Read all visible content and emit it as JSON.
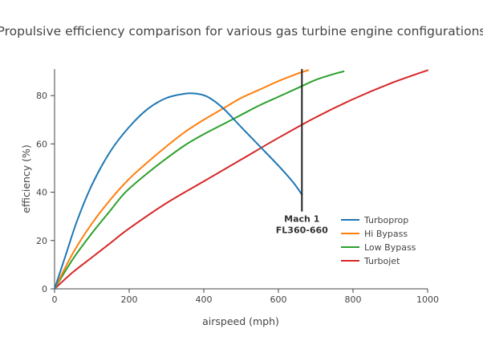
{
  "chart_data": {
    "type": "line",
    "title": "Propulsive efficiency comparison for various gas turbine engine configurations",
    "xlabel": "airspeed (mph)",
    "ylabel": "efficiency (%)",
    "xlim": [
      0,
      1000
    ],
    "ylim": [
      0,
      91
    ],
    "x_ticks": [
      0,
      200,
      400,
      600,
      800,
      1000
    ],
    "y_ticks": [
      0,
      20,
      40,
      60,
      80
    ],
    "grid": false,
    "legend_position": "bottom-right",
    "series": [
      {
        "name": "Turboprop",
        "color": "#1f77b4",
        "x": [
          0,
          30,
          60,
          100,
          150,
          200,
          250,
          300,
          350,
          380,
          410,
          450,
          500,
          550,
          600,
          640,
          663
        ],
        "y": [
          0,
          14,
          28,
          43,
          57,
          67,
          74.5,
          79,
          80.8,
          80.8,
          79.5,
          75,
          67,
          59,
          51,
          44,
          39
        ]
      },
      {
        "name": "Hi Bypass",
        "color": "#ff7f0e",
        "x": [
          0,
          50,
          100,
          150,
          200,
          250,
          300,
          350,
          400,
          450,
          500,
          550,
          600,
          650,
          680
        ],
        "y": [
          0,
          15,
          27,
          37,
          45.5,
          52.5,
          59,
          65,
          70,
          74.5,
          79,
          82.5,
          86,
          89,
          90.5
        ]
      },
      {
        "name": "Low Bypass",
        "color": "#2ca02c",
        "x": [
          0,
          50,
          100,
          150,
          190,
          250,
          300,
          350,
          400,
          450,
          500,
          550,
          600,
          650,
          700,
          750,
          775
        ],
        "y": [
          0,
          12.5,
          23,
          32.5,
          40,
          48,
          54,
          59.5,
          64,
          68,
          72,
          76,
          79.5,
          83,
          86.5,
          89,
          90
        ]
      },
      {
        "name": "Turbojet",
        "color": "#d62728",
        "x": [
          0,
          50,
          100,
          150,
          200,
          300,
          400,
          500,
          600,
          700,
          800,
          900,
          1000
        ],
        "y": [
          0,
          7,
          13,
          19,
          25,
          35.5,
          44.5,
          53.5,
          62.5,
          71,
          78.5,
          85,
          90.5
        ]
      }
    ],
    "annotations": [
      {
        "type": "vline",
        "x": 663,
        "y_from": 32,
        "y_to": 91,
        "label_lines": [
          "Mach 1",
          "FL360-660"
        ]
      }
    ]
  }
}
